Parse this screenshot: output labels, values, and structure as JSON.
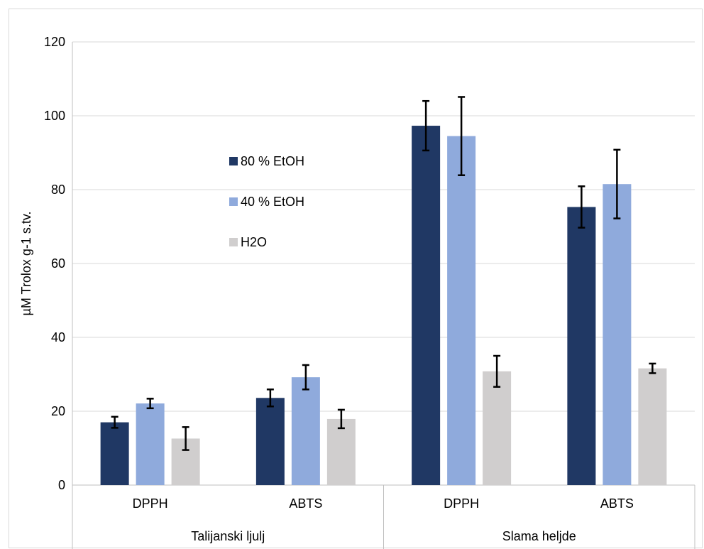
{
  "chart_data": {
    "type": "bar",
    "title": "",
    "ylabel": "µM Trolox g-1 s.tv.",
    "ylim": [
      0,
      120
    ],
    "yticks": [
      0,
      20,
      40,
      60,
      80,
      100,
      120
    ],
    "grid": true,
    "legend_position": "left-center",
    "groups": [
      {
        "label": "Talijanski ljulj",
        "categories": [
          "DPPH",
          "ABTS"
        ]
      },
      {
        "label": "Slama heljde",
        "categories": [
          "DPPH",
          "ABTS"
        ]
      }
    ],
    "categories": [
      "DPPH",
      "ABTS",
      "DPPH",
      "ABTS"
    ],
    "series": [
      {
        "name": "80 % EtOH",
        "color": "#203864",
        "values": [
          17.0,
          23.6,
          97.3,
          75.3
        ],
        "errors": [
          1.5,
          2.3,
          6.7,
          5.6
        ]
      },
      {
        "name": "40 % EtOH",
        "color": "#8faadc",
        "values": [
          22.1,
          29.2,
          94.5,
          81.5
        ],
        "errors": [
          1.3,
          3.3,
          10.6,
          9.3
        ]
      },
      {
        "name": "H2O",
        "color": "#d0cece",
        "values": [
          12.6,
          17.9,
          30.8,
          31.6
        ],
        "errors": [
          3.1,
          2.5,
          4.2,
          1.3
        ]
      }
    ]
  }
}
